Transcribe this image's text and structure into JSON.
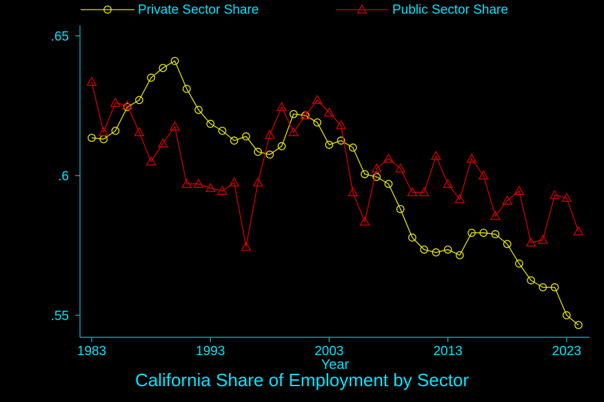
{
  "chart_data": {
    "type": "line",
    "title": "California Share of Employment by Sector",
    "xlabel": "Year",
    "ylabel": "",
    "xlim": [
      1983,
      2024
    ],
    "ylim": [
      0.545,
      0.655
    ],
    "x_ticks": [
      1983,
      1993,
      2003,
      2013,
      2023
    ],
    "y_ticks": [
      0.55,
      0.6,
      0.65
    ],
    "y_tick_labels": [
      ".55",
      ".6",
      ".65"
    ],
    "grid": false,
    "legend_position": "top",
    "x": [
      1983,
      1984,
      1985,
      1986,
      1987,
      1988,
      1989,
      1990,
      1991,
      1992,
      1993,
      1994,
      1995,
      1996,
      1997,
      1998,
      1999,
      2000,
      2001,
      2002,
      2003,
      2004,
      2005,
      2006,
      2007,
      2008,
      2009,
      2010,
      2011,
      2012,
      2013,
      2014,
      2015,
      2016,
      2017,
      2018,
      2019,
      2020,
      2021,
      2022,
      2023,
      2024
    ],
    "series": [
      {
        "name": "Private Sector Share",
        "color": "#e6e600",
        "marker": "circle",
        "values": [
          0.6135,
          0.613,
          0.616,
          0.6245,
          0.627,
          0.635,
          0.6385,
          0.641,
          0.631,
          0.6235,
          0.6185,
          0.616,
          0.6125,
          0.614,
          0.6085,
          0.6075,
          0.6105,
          0.622,
          0.6215,
          0.619,
          0.611,
          0.6125,
          0.61,
          0.6005,
          0.5995,
          0.597,
          0.588,
          0.5778,
          0.5735,
          0.5725,
          0.5735,
          0.5715,
          0.5795,
          0.5795,
          0.579,
          0.5755,
          0.5685,
          0.5625,
          0.56,
          0.56,
          0.55,
          0.5465
        ]
      },
      {
        "name": "Public Sector Share",
        "color": "#d40000",
        "marker": "triangle",
        "values": [
          0.6335,
          0.6155,
          0.626,
          0.625,
          0.6155,
          0.605,
          0.6115,
          0.6175,
          0.597,
          0.597,
          0.5955,
          0.5945,
          0.5975,
          0.5745,
          0.5975,
          0.6145,
          0.6245,
          0.6155,
          0.6215,
          0.627,
          0.6225,
          0.618,
          0.594,
          0.5835,
          0.6025,
          0.606,
          0.6025,
          0.594,
          0.594,
          0.607,
          0.597,
          0.5915,
          0.606,
          0.6,
          0.5855,
          0.591,
          0.5945,
          0.576,
          0.577,
          0.593,
          0.592,
          0.58
        ]
      }
    ]
  },
  "colors": {
    "background": "#000000",
    "text": "#00e5ff",
    "axis": "#00c8d8",
    "private": "#e6e600",
    "public": "#d40000"
  }
}
